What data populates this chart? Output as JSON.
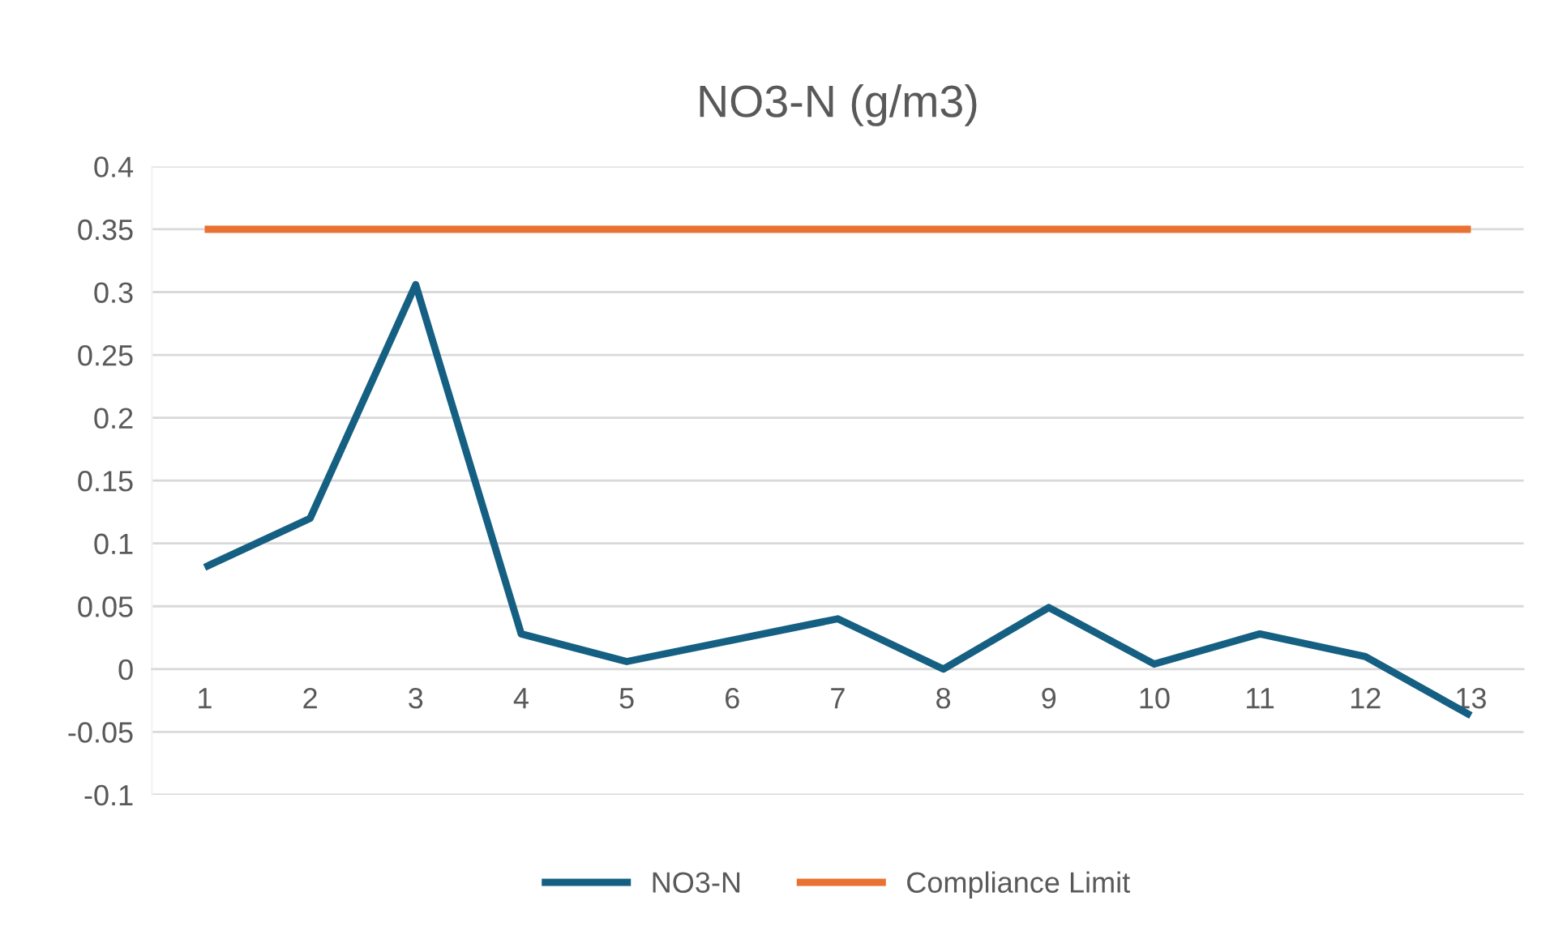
{
  "chart_data": {
    "type": "line",
    "title": "NO3-N (g/m3)",
    "categories": [
      "1",
      "2",
      "3",
      "4",
      "5",
      "6",
      "7",
      "8",
      "9",
      "10",
      "11",
      "12",
      "13"
    ],
    "series": [
      {
        "name": "NO3-N",
        "color": "#156082",
        "values": [
          0.081,
          0.12,
          0.306,
          0.028,
          0.006,
          0.023,
          0.04,
          0,
          0.049,
          0.004,
          0.028,
          0.01,
          -0.037
        ]
      },
      {
        "name": "Compliance Limit",
        "color": "#e97132",
        "values": [
          0.35,
          0.35,
          0.35,
          0.35,
          0.35,
          0.35,
          0.35,
          0.35,
          0.35,
          0.35,
          0.35,
          0.35,
          0.35
        ]
      }
    ],
    "ylim": [
      -0.1,
      0.4
    ],
    "yticks": [
      -0.1,
      -0.05,
      0,
      0.05,
      0.1,
      0.15,
      0.2,
      0.25,
      0.3,
      0.35,
      0.4
    ],
    "grid": "y",
    "legend": "bottom",
    "marker": "none",
    "line_style": "solid"
  }
}
